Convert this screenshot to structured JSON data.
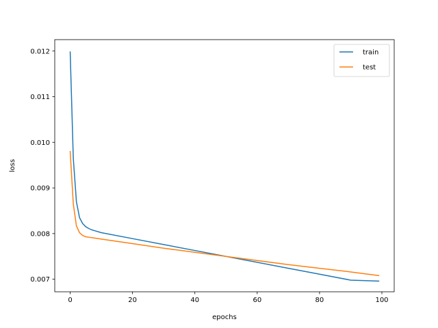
{
  "chart_data": {
    "type": "line",
    "xlabel": "epochs",
    "ylabel": "loss",
    "xlim": [
      -4.95,
      103.95
    ],
    "ylim": [
      0.006725,
      0.01225
    ],
    "x_ticks": [
      0,
      20,
      40,
      60,
      80,
      100
    ],
    "x_tick_labels": [
      "0",
      "20",
      "40",
      "60",
      "80",
      "100"
    ],
    "y_ticks": [
      0.007,
      0.008,
      0.009,
      0.01,
      0.011,
      0.012
    ],
    "y_tick_labels": [
      "0.007",
      "0.008",
      "0.009",
      "0.010",
      "0.011",
      "0.012"
    ],
    "grid": false,
    "legend_position": "top-right",
    "series": [
      {
        "name": "train",
        "color": "#1f77b4",
        "x": [
          0,
          1,
          2,
          3,
          4,
          5,
          6,
          7,
          8,
          10,
          20,
          30,
          40,
          50,
          60,
          70,
          80,
          90,
          99
        ],
        "values": [
          0.01198,
          0.00965,
          0.0087,
          0.00835,
          0.00822,
          0.00815,
          0.00811,
          0.00808,
          0.00806,
          0.00802,
          0.00789,
          0.00776,
          0.00763,
          0.0075,
          0.00737,
          0.00724,
          0.00711,
          0.00698,
          0.00696
        ]
      },
      {
        "name": "test",
        "color": "#ff7f0e",
        "x": [
          0,
          1,
          2,
          3,
          4,
          5,
          6,
          8,
          10,
          20,
          30,
          40,
          50,
          60,
          70,
          80,
          90,
          99
        ],
        "values": [
          0.0098,
          0.00865,
          0.00817,
          0.00802,
          0.00796,
          0.00793,
          0.00792,
          0.0079,
          0.00788,
          0.00778,
          0.00768,
          0.00759,
          0.0075,
          0.00741,
          0.00732,
          0.00724,
          0.00716,
          0.00708
        ]
      }
    ]
  }
}
